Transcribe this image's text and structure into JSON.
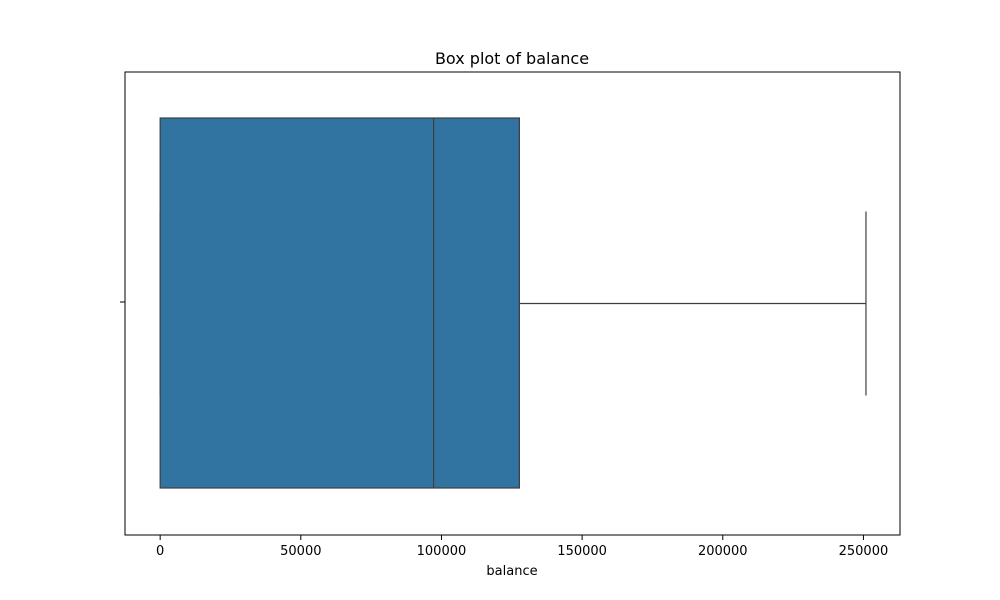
{
  "chart_data": {
    "type": "box",
    "title": "Box plot of balance",
    "xlabel": "balance",
    "ylabel": "",
    "orientation": "horizontal",
    "xlim": [
      -12500,
      263000
    ],
    "x_ticks": [
      0,
      50000,
      100000,
      150000,
      200000,
      250000
    ],
    "x_tick_labels": [
      "0",
      "50000",
      "100000",
      "150000",
      "200000",
      "250000"
    ],
    "grid": false,
    "legend": "none",
    "series": [
      {
        "whisker_low": 0,
        "q1": 0,
        "median": 97200,
        "q3": 127700,
        "whisker_high": 250900,
        "color": "#3274a1"
      }
    ]
  }
}
